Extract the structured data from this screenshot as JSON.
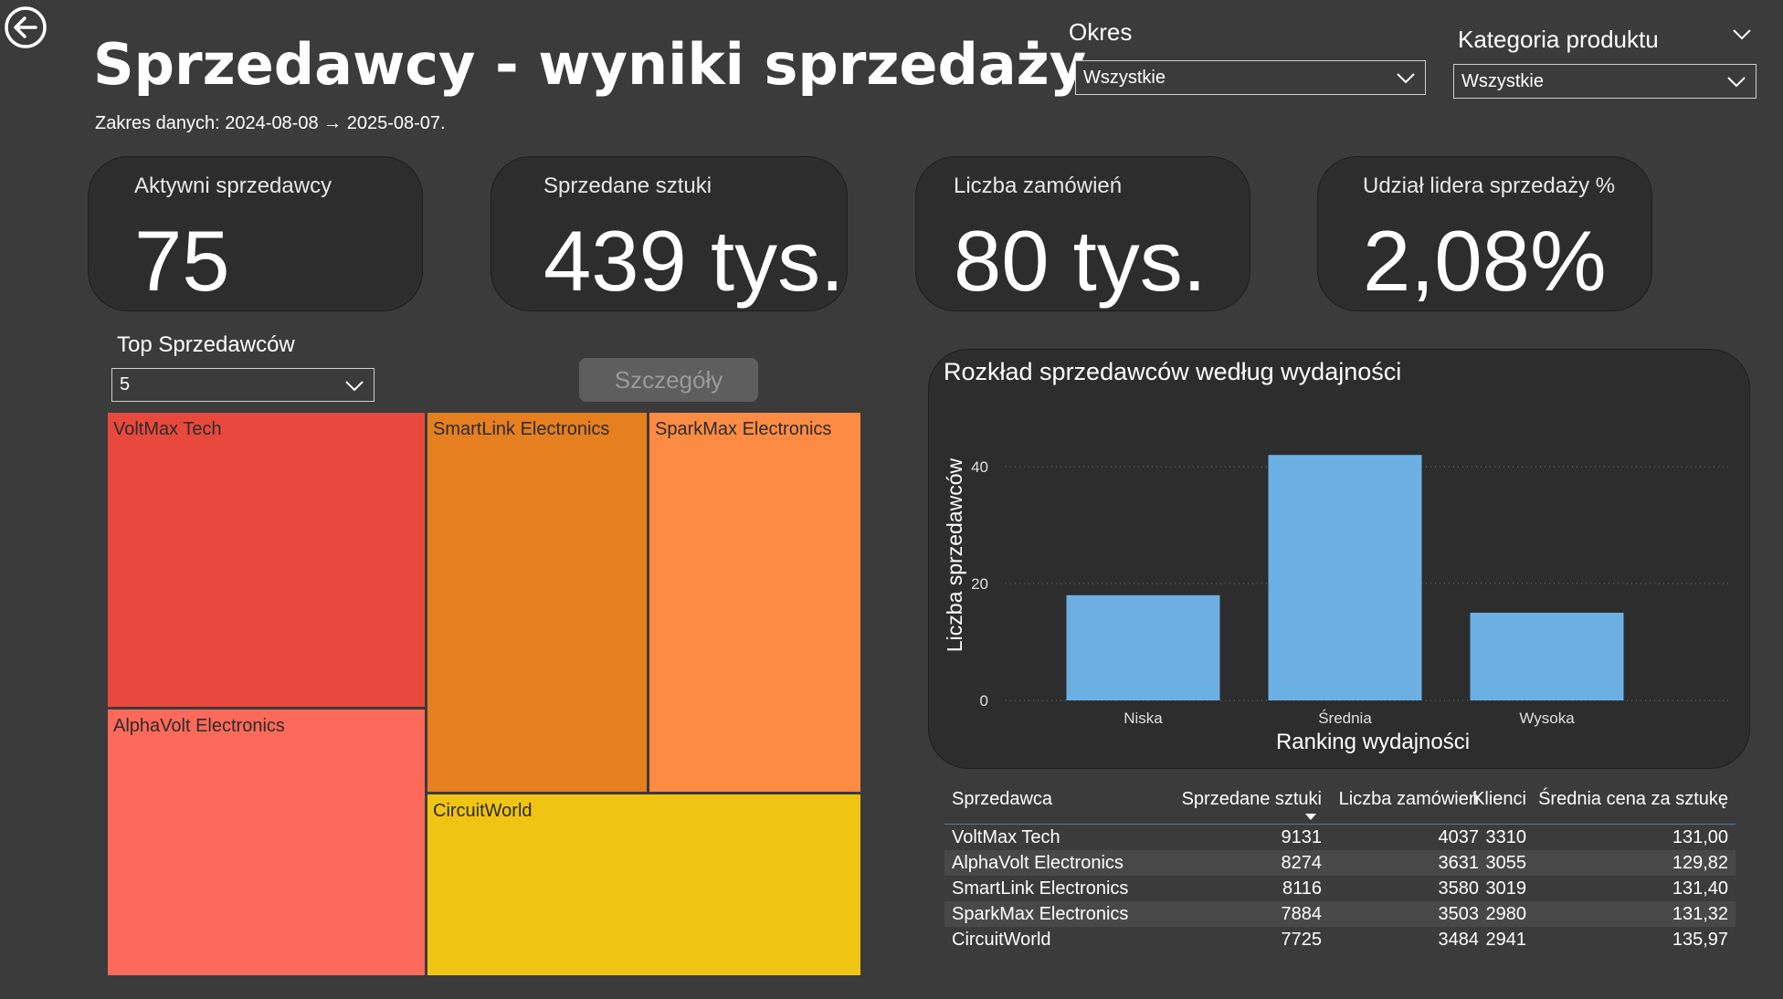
{
  "header": {
    "title": "Sprzedawcy - wyniki sprzedaży",
    "date_range": "Zakres danych: 2024-08-08 → 2025-08-07."
  },
  "filters": {
    "period": {
      "label": "Okres",
      "value": "Wszystkie"
    },
    "category": {
      "label": "Kategoria produktu",
      "value": "Wszystkie"
    }
  },
  "kpis": [
    {
      "label": "Aktywni sprzedawcy",
      "value": "75"
    },
    {
      "label": "Sprzedane sztuki",
      "value": "439 tys."
    },
    {
      "label": "Liczba zamówień",
      "value": "80 tys."
    },
    {
      "label": "Udział lidera sprzedaży %",
      "value": "2,08%"
    }
  ],
  "top_sellers": {
    "label": "Top Sprzedawców",
    "value": "5"
  },
  "details_button": "Szczegóły",
  "treemap": {
    "tiles": [
      {
        "name": "VoltMax Tech",
        "color": "#e8493c"
      },
      {
        "name": "AlphaVolt Electronics",
        "color": "#fd6a5a"
      },
      {
        "name": "SmartLink Electronics",
        "color": "#e57f1f"
      },
      {
        "name": "SparkMax Electronics",
        "color": "#fe8b43"
      },
      {
        "name": "CircuitWorld",
        "color": "#f0c412"
      }
    ]
  },
  "chart_data": {
    "type": "bar",
    "title": "Rozkład sprzedawców według wydajności",
    "xlabel": "Ranking wydajności",
    "ylabel": "Liczba sprzedawców",
    "categories": [
      "Niska",
      "Średnia",
      "Wysoka"
    ],
    "values": [
      18,
      42,
      15
    ],
    "ylim": [
      0,
      45
    ],
    "yticks": [
      0,
      20,
      40
    ],
    "color": "#6cb0e3",
    "grid": true
  },
  "table": {
    "columns": [
      "Sprzedawca",
      "Sprzedane sztuki",
      "Liczba zamówień",
      "Klienci",
      "Średnia cena za sztukę"
    ],
    "rows": [
      [
        "VoltMax Tech",
        "9131",
        "4037",
        "3310",
        "131,00"
      ],
      [
        "AlphaVolt Electronics",
        "8274",
        "3631",
        "3055",
        "129,82"
      ],
      [
        "SmartLink Electronics",
        "8116",
        "3580",
        "3019",
        "131,40"
      ],
      [
        "SparkMax Electronics",
        "7884",
        "3503",
        "2980",
        "131,32"
      ],
      [
        "CircuitWorld",
        "7725",
        "3484",
        "2941",
        "135,97"
      ]
    ]
  }
}
